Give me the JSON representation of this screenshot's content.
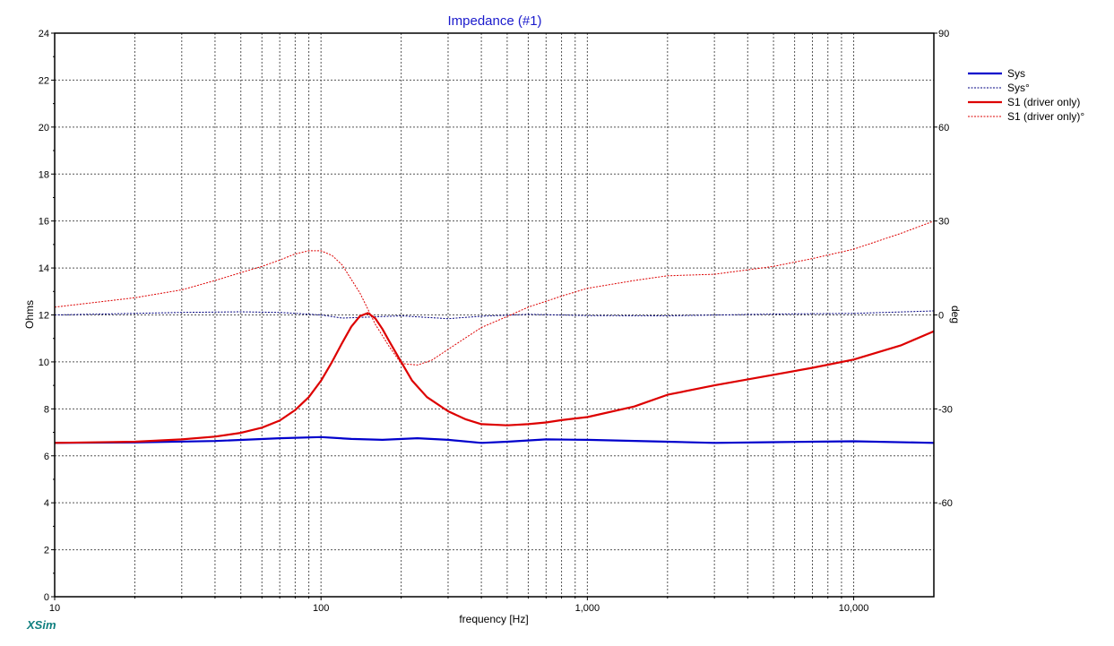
{
  "chart_data": {
    "type": "line",
    "title": "Impedance (#1)",
    "xlabel": "frequency [Hz]",
    "ylabel": "Ohms",
    "y2label": "deg",
    "x_scale": "log",
    "xlim": [
      10,
      20000
    ],
    "ylim": [
      0,
      24
    ],
    "y2lim": [
      -90,
      90
    ],
    "x_ticks": [
      10,
      100,
      1000,
      10000
    ],
    "x_tick_labels": [
      "10",
      "100",
      "1,000",
      "10,000"
    ],
    "y_ticks": [
      0,
      2,
      4,
      6,
      8,
      10,
      12,
      14,
      16,
      18,
      20,
      22,
      24
    ],
    "y_tick_labels": [
      "0",
      "2",
      "4",
      "6",
      "8",
      "10",
      "12",
      "14",
      "16",
      "18",
      "20",
      "22",
      "24"
    ],
    "y2_ticks": [
      90,
      60,
      30,
      0,
      -30,
      -60
    ],
    "y2_tick_labels": [
      "90",
      "60",
      "30",
      "0",
      "-30",
      "-60"
    ],
    "grid": true,
    "legend_position": "top-right",
    "series": [
      {
        "name": "Sys",
        "axis": "left",
        "color": "#0000cc",
        "style": "solid-thick",
        "x": [
          10,
          20,
          40,
          70,
          100,
          130,
          170,
          230,
          300,
          400,
          500,
          700,
          1000,
          2000,
          3000,
          5000,
          7000,
          10000,
          20000
        ],
        "y": [
          6.55,
          6.57,
          6.63,
          6.75,
          6.8,
          6.72,
          6.68,
          6.75,
          6.68,
          6.55,
          6.6,
          6.7,
          6.68,
          6.6,
          6.55,
          6.58,
          6.6,
          6.62,
          6.55
        ]
      },
      {
        "name": "Sys°",
        "axis": "right",
        "color": "#000080",
        "style": "dotted",
        "x": [
          10,
          20,
          30,
          50,
          70,
          100,
          120,
          150,
          200,
          300,
          400,
          600,
          1000,
          2000,
          5000,
          10000,
          20000
        ],
        "y": [
          0,
          0.5,
          0.8,
          1.0,
          0.8,
          0,
          -1,
          -0.7,
          -0.3,
          -1.2,
          -0.4,
          0.2,
          -0.2,
          -0.3,
          0.3,
          0.5,
          1.3
        ]
      },
      {
        "name": "S1 (driver only)",
        "axis": "left",
        "color": "#dd0000",
        "style": "solid-thick",
        "x": [
          10,
          20,
          30,
          40,
          50,
          60,
          70,
          80,
          90,
          100,
          110,
          120,
          130,
          140,
          150,
          160,
          170,
          180,
          200,
          220,
          250,
          300,
          350,
          400,
          500,
          600,
          700,
          800,
          1000,
          1500,
          2000,
          3000,
          5000,
          7000,
          10000,
          15000,
          20000
        ],
        "y": [
          6.55,
          6.6,
          6.7,
          6.82,
          6.98,
          7.2,
          7.5,
          7.95,
          8.5,
          9.2,
          10.0,
          10.8,
          11.5,
          11.95,
          12.08,
          11.85,
          11.4,
          10.9,
          10.0,
          9.2,
          8.5,
          7.9,
          7.55,
          7.35,
          7.3,
          7.35,
          7.42,
          7.52,
          7.65,
          8.1,
          8.6,
          9.0,
          9.45,
          9.75,
          10.1,
          10.7,
          11.3
        ]
      },
      {
        "name": "S1 (driver only)°",
        "axis": "right",
        "color": "#dd0000",
        "style": "dotted",
        "x": [
          10,
          20,
          30,
          40,
          50,
          60,
          70,
          80,
          90,
          100,
          110,
          120,
          140,
          160,
          180,
          200,
          230,
          260,
          300,
          400,
          500,
          600,
          800,
          1000,
          1500,
          2000,
          3000,
          5000,
          7000,
          10000,
          15000,
          20000
        ],
        "y": [
          2.5,
          5.5,
          8.0,
          11.0,
          13.5,
          15.5,
          17.5,
          19.5,
          20.5,
          20.5,
          19.0,
          16.0,
          7.0,
          -3.0,
          -10.0,
          -15.5,
          -16.0,
          -14.5,
          -11.0,
          -4.0,
          -0.5,
          2.5,
          6.0,
          8.5,
          11.0,
          12.5,
          13.0,
          15.5,
          18.0,
          21.0,
          26.0,
          30.0
        ]
      }
    ],
    "annotations": [
      "XSim"
    ]
  }
}
